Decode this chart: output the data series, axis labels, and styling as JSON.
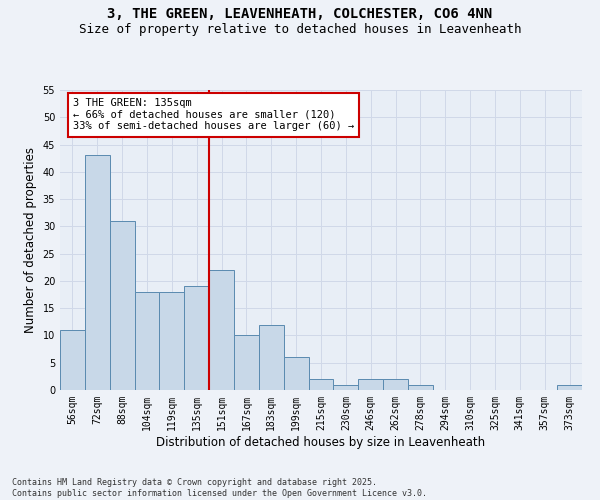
{
  "title1": "3, THE GREEN, LEAVENHEATH, COLCHESTER, CO6 4NN",
  "title2": "Size of property relative to detached houses in Leavenheath",
  "xlabel": "Distribution of detached houses by size in Leavenheath",
  "ylabel": "Number of detached properties",
  "bins": [
    "56sqm",
    "72sqm",
    "88sqm",
    "104sqm",
    "119sqm",
    "135sqm",
    "151sqm",
    "167sqm",
    "183sqm",
    "199sqm",
    "215sqm",
    "230sqm",
    "246sqm",
    "262sqm",
    "278sqm",
    "294sqm",
    "310sqm",
    "325sqm",
    "341sqm",
    "357sqm",
    "373sqm"
  ],
  "values": [
    11,
    43,
    31,
    18,
    18,
    19,
    22,
    10,
    12,
    6,
    2,
    1,
    2,
    2,
    1,
    0,
    0,
    0,
    0,
    0,
    1
  ],
  "bar_color": "#c8d8e8",
  "bar_edge_color": "#5a8ab0",
  "vline_x": 5.5,
  "annotation_text": "3 THE GREEN: 135sqm\n← 66% of detached houses are smaller (120)\n33% of semi-detached houses are larger (60) →",
  "annotation_box_color": "#ffffff",
  "annotation_box_edge": "#cc0000",
  "vline_color": "#cc0000",
  "grid_color": "#d0d8e8",
  "bg_color": "#e8eef6",
  "fig_color": "#eef2f8",
  "footnote": "Contains HM Land Registry data © Crown copyright and database right 2025.\nContains public sector information licensed under the Open Government Licence v3.0.",
  "ylim": [
    0,
    55
  ],
  "title_fontsize": 10,
  "subtitle_fontsize": 9,
  "axis_label_fontsize": 8.5,
  "tick_fontsize": 7,
  "annotation_fontsize": 7.5
}
